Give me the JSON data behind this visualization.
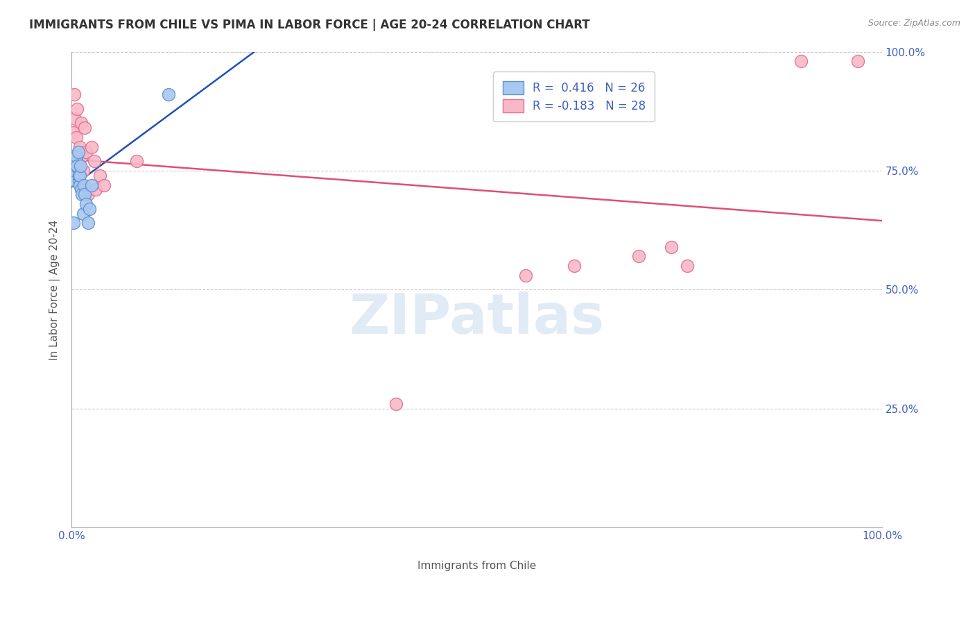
{
  "title": "IMMIGRANTS FROM CHILE VS PIMA IN LABOR FORCE | AGE 20-24 CORRELATION CHART",
  "source": "Source: ZipAtlas.com",
  "xlabel": "Immigrants from Chile",
  "ylabel": "In Labor Force | Age 20-24",
  "xlim": [
    0,
    1.0
  ],
  "ylim": [
    0,
    1.0
  ],
  "grid_color": "#cccccc",
  "background_color": "#ffffff",
  "watermark_text": "ZIPatlas",
  "legend_r1": "R =  0.416",
  "legend_n1": "N = 26",
  "legend_r2": "R = -0.183",
  "legend_n2": "N = 28",
  "chile_color": "#a8c8f0",
  "chile_edge_color": "#6090d0",
  "pima_color": "#f8b8c8",
  "pima_edge_color": "#e07090",
  "chile_line_color": "#2050b0",
  "pima_line_color": "#e05070",
  "marker_size": 13,
  "chile_x": [
    0.002,
    0.003,
    0.004,
    0.004,
    0.005,
    0.005,
    0.005,
    0.006,
    0.006,
    0.007,
    0.008,
    0.009,
    0.009,
    0.01,
    0.01,
    0.011,
    0.012,
    0.013,
    0.014,
    0.015,
    0.016,
    0.018,
    0.02,
    0.022,
    0.025,
    0.12
  ],
  "chile_y": [
    0.64,
    0.76,
    0.73,
    0.75,
    0.76,
    0.77,
    0.78,
    0.77,
    0.78,
    0.76,
    0.79,
    0.73,
    0.74,
    0.72,
    0.74,
    0.76,
    0.71,
    0.7,
    0.66,
    0.72,
    0.7,
    0.68,
    0.64,
    0.67,
    0.72,
    0.91
  ],
  "pima_x": [
    0.002,
    0.003,
    0.004,
    0.006,
    0.007,
    0.008,
    0.009,
    0.01,
    0.012,
    0.013,
    0.014,
    0.016,
    0.018,
    0.02,
    0.025,
    0.028,
    0.03,
    0.035,
    0.04,
    0.08,
    0.4,
    0.56,
    0.62,
    0.7,
    0.74,
    0.76,
    0.9,
    0.97
  ],
  "pima_y": [
    0.83,
    0.91,
    0.86,
    0.82,
    0.88,
    0.79,
    0.77,
    0.8,
    0.85,
    0.78,
    0.75,
    0.84,
    0.79,
    0.7,
    0.8,
    0.77,
    0.71,
    0.74,
    0.72,
    0.77,
    0.26,
    0.53,
    0.55,
    0.57,
    0.59,
    0.55,
    0.98,
    0.98
  ],
  "ytick_labels_right": [
    "100.0%",
    "75.0%",
    "50.0%",
    "25.0%"
  ],
  "yticks_right": [
    1.0,
    0.75,
    0.5,
    0.25
  ],
  "text_color": "#4060c0",
  "title_color": "#333333",
  "source_color": "#888888"
}
